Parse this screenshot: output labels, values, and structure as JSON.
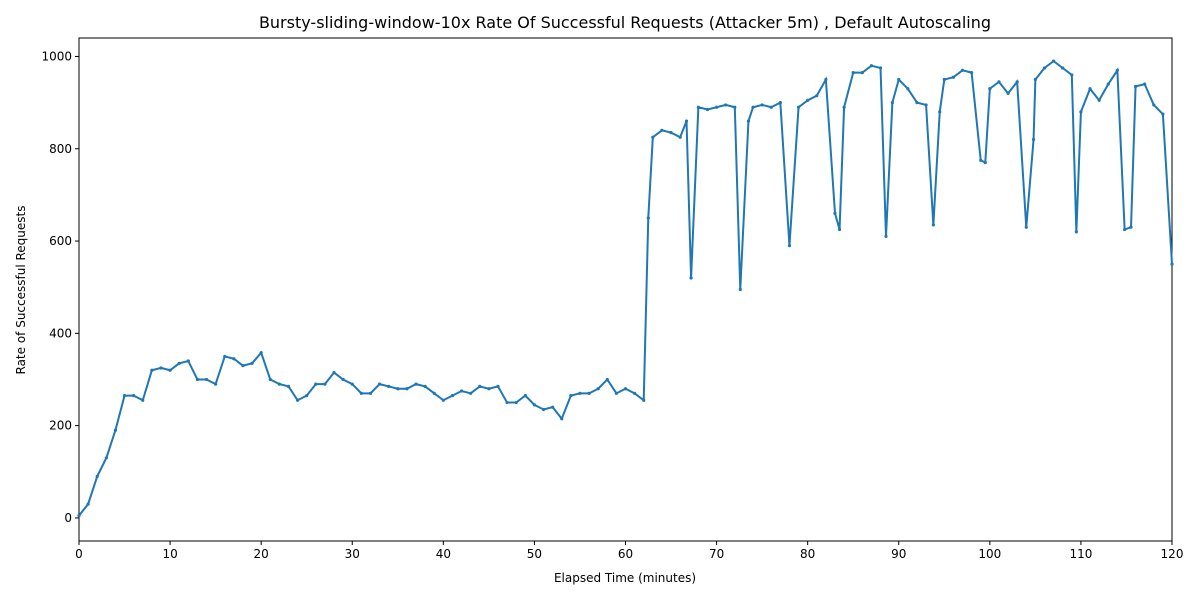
{
  "chart_data": {
    "type": "line",
    "title": "Bursty-sliding-window-10x Rate Of Successful Requests (Attacker 5m) , Default Autoscaling",
    "x_label": "Elapsed Time (minutes)",
    "y_label": "Rate of Successful Requests",
    "color": "#1f77b4",
    "x": [
      0,
      1,
      2,
      3,
      4,
      5,
      6,
      7,
      8,
      9,
      10,
      11,
      12,
      13,
      14,
      15,
      16,
      17,
      18,
      19,
      20,
      21,
      22,
      23,
      24,
      25,
      26,
      27,
      28,
      29,
      30,
      31,
      32,
      33,
      34,
      35,
      36,
      37,
      38,
      39,
      40,
      41,
      42,
      43,
      44,
      45,
      46,
      47,
      48,
      49,
      50,
      51,
      52,
      53,
      54,
      55,
      56,
      57,
      58,
      59,
      60,
      61,
      62,
      62.5,
      63,
      64,
      65,
      66,
      66.7,
      67.2,
      68,
      69,
      70,
      71,
      72,
      72.6,
      73.5,
      74,
      75,
      76,
      77,
      78,
      79,
      80,
      81,
      82,
      83,
      83.5,
      84,
      85,
      86,
      87,
      88,
      88.6,
      89.3,
      90,
      91,
      92,
      93,
      93.8,
      94.5,
      95,
      96,
      97,
      98,
      99,
      99.5,
      100,
      101,
      102,
      103,
      104,
      104.8,
      105,
      106,
      107,
      108,
      109,
      109.5,
      110,
      111,
      112,
      113,
      114,
      114.8,
      115.5,
      116,
      117,
      118,
      119,
      120
    ],
    "values": [
      5,
      30,
      90,
      130,
      190,
      265,
      265,
      255,
      320,
      325,
      320,
      335,
      340,
      300,
      300,
      290,
      350,
      345,
      330,
      335,
      358,
      300,
      290,
      285,
      255,
      265,
      290,
      290,
      315,
      300,
      290,
      270,
      270,
      290,
      285,
      280,
      280,
      290,
      285,
      270,
      255,
      265,
      275,
      270,
      285,
      280,
      285,
      250,
      250,
      265,
      245,
      235,
      240,
      215,
      265,
      270,
      270,
      280,
      300,
      270,
      280,
      270,
      255,
      650,
      825,
      840,
      835,
      825,
      860,
      520,
      890,
      885,
      890,
      895,
      890,
      495,
      860,
      890,
      895,
      890,
      900,
      590,
      890,
      905,
      915,
      950,
      660,
      625,
      890,
      965,
      965,
      980,
      975,
      610,
      900,
      950,
      930,
      900,
      895,
      635,
      880,
      950,
      955,
      970,
      965,
      775,
      770,
      930,
      945,
      920,
      945,
      630,
      820,
      950,
      975,
      990,
      975,
      960,
      620,
      880,
      930,
      905,
      940,
      970,
      625,
      630,
      935,
      940,
      895,
      875,
      550
    ],
    "xlim": [
      0,
      120
    ],
    "ylim": [
      -50,
      1040
    ],
    "xticks": [
      0,
      10,
      20,
      30,
      40,
      50,
      60,
      70,
      80,
      90,
      100,
      110,
      120
    ],
    "yticks": [
      0,
      200,
      400,
      600,
      800,
      1000
    ]
  }
}
